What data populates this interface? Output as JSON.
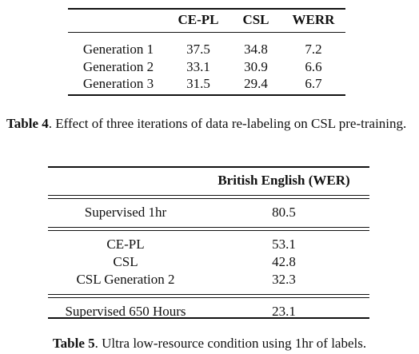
{
  "table4": {
    "header": [
      "CE-PL",
      "CSL",
      "WERR"
    ],
    "rows": [
      {
        "label": "Generation 1",
        "values": [
          37.5,
          34.8,
          7.2
        ]
      },
      {
        "label": "Generation 2",
        "values": [
          33.1,
          30.9,
          6.6
        ]
      },
      {
        "label": "Generation 3",
        "values": [
          31.5,
          29.4,
          6.7
        ]
      }
    ],
    "caption": {
      "label": "Table 4",
      "text": ". Effect of three iterations of data re-labeling on CSL pre-training."
    }
  },
  "table5": {
    "header": "British English (WER)",
    "groups": [
      [
        {
          "label": "Supervised 1hr",
          "value": 80.5
        }
      ],
      [
        {
          "label": "CE-PL",
          "value": 53.1
        },
        {
          "label": "CSL",
          "value": 42.8
        },
        {
          "label": "CSL Generation 2",
          "value": 32.3
        }
      ],
      [
        {
          "label": "Supervised 650 Hours",
          "value": 23.1
        }
      ]
    ],
    "caption": {
      "label": "Table 5",
      "text": ". Ultra low-resource condition using 1hr of labels."
    }
  }
}
